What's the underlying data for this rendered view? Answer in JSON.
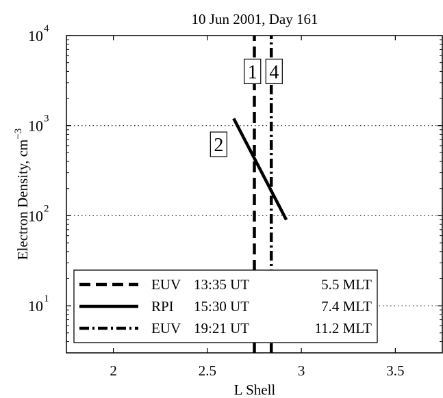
{
  "chart_data": {
    "type": "line",
    "title": "10 Jun 2001,  Day 161",
    "xlabel": "L Shell",
    "ylabel": "Electron Density, cm",
    "ylabel_exponent": "−3",
    "xlim": [
      1.75,
      3.75
    ],
    "ylim": [
      3,
      10000
    ],
    "yscale": "log",
    "xticks": [
      {
        "value": 2,
        "label": "2"
      },
      {
        "value": 2.5,
        "label": "2.5"
      },
      {
        "value": 3,
        "label": "3"
      },
      {
        "value": 3.5,
        "label": "3.5"
      }
    ],
    "yticks": [
      {
        "value": 10,
        "base": "10",
        "exp": "1"
      },
      {
        "value": 100,
        "base": "10",
        "exp": "2"
      },
      {
        "value": 1000,
        "base": "10",
        "exp": "3"
      },
      {
        "value": 10000,
        "base": "10",
        "exp": "4"
      }
    ],
    "grid": "horizontal dotted at 10^1, 10^2, 10^3",
    "series": [
      {
        "style": "dashed",
        "x": [
          2.75,
          2.75
        ],
        "y": [
          3,
          10000
        ]
      },
      {
        "style": "solid",
        "x": [
          2.64,
          2.92
        ],
        "y": [
          1200,
          90
        ]
      },
      {
        "style": "dashdot",
        "x": [
          2.84,
          2.84
        ],
        "y": [
          3,
          10000
        ]
      }
    ],
    "annotations": [
      {
        "label": "1",
        "x": 2.74,
        "y": 4000
      },
      {
        "label": "4",
        "x": 2.855,
        "y": 4000
      },
      {
        "label": "2",
        "x": 2.56,
        "y": 620
      }
    ],
    "legend": {
      "placement": "bottom-left",
      "entries": [
        {
          "style": "dashed",
          "instrument": "EUV",
          "time": "13:35 UT",
          "mlt": "5.5 MLT"
        },
        {
          "style": "solid",
          "instrument": "RPI",
          "time": "15:30 UT",
          "mlt": "7.4 MLT"
        },
        {
          "style": "dashdot",
          "instrument": "EUV",
          "time": "19:21 UT",
          "mlt": "11.2 MLT"
        }
      ]
    }
  }
}
